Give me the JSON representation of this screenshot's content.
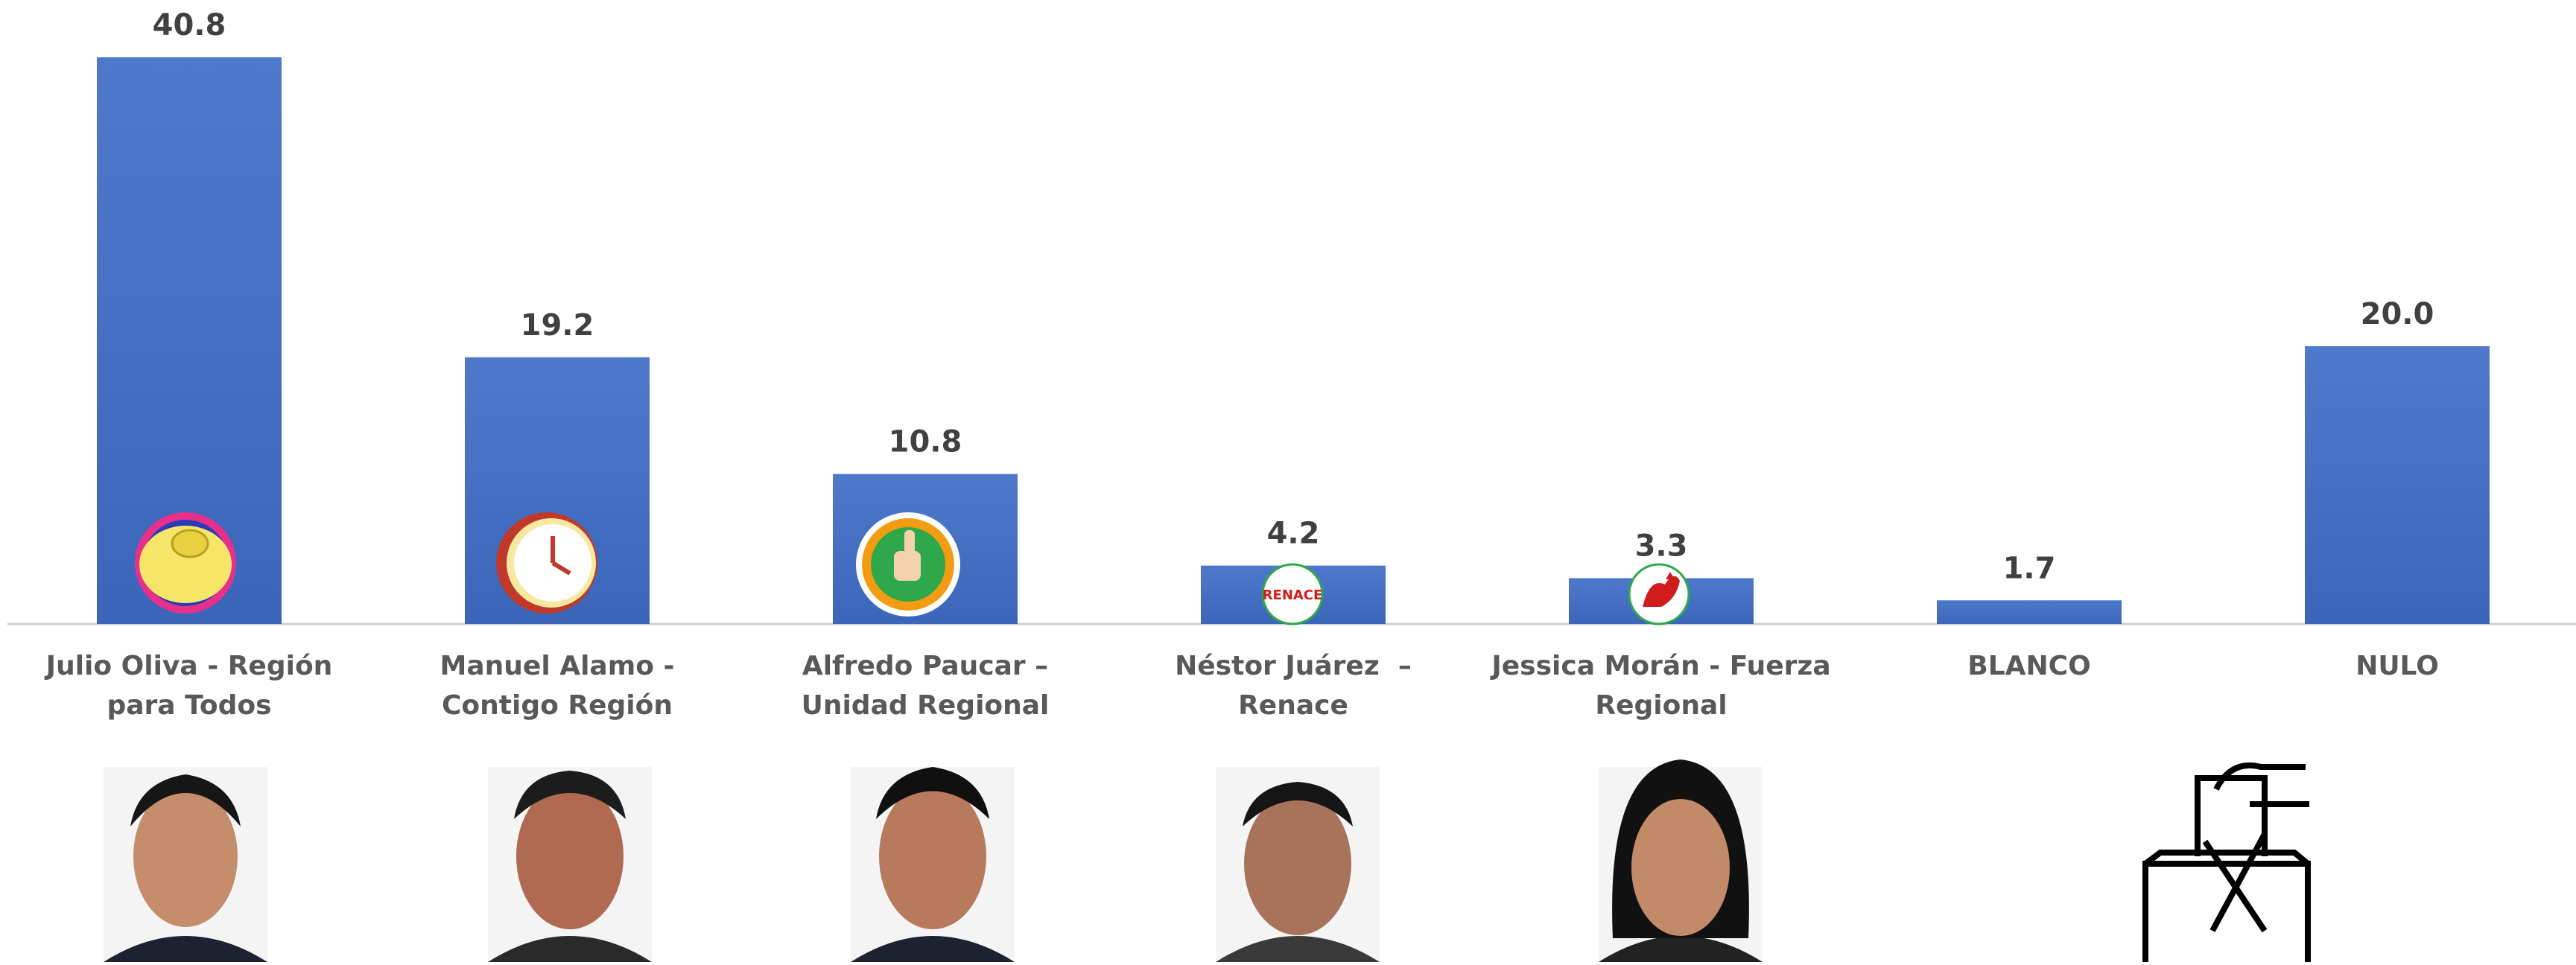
{
  "chart_data": {
    "type": "bar",
    "categories": [
      "Julio Oliva - Región para Todos",
      "Manuel Alamo - Contigo Región",
      "Alfredo Paucar – Unidad Regional",
      "Néstor Juárez  – Renace",
      "Jessica Morán - Fuerza Regional",
      "BLANCO",
      "NULO"
    ],
    "values": [
      40.8,
      19.2,
      10.8,
      4.2,
      3.3,
      1.7,
      20.0
    ],
    "value_labels": [
      "40.8",
      "19.2",
      "10.8",
      "4.2",
      "3.3",
      "1.7",
      "20.0"
    ],
    "color": "#4472c4"
  },
  "logo_label": "RENACE"
}
